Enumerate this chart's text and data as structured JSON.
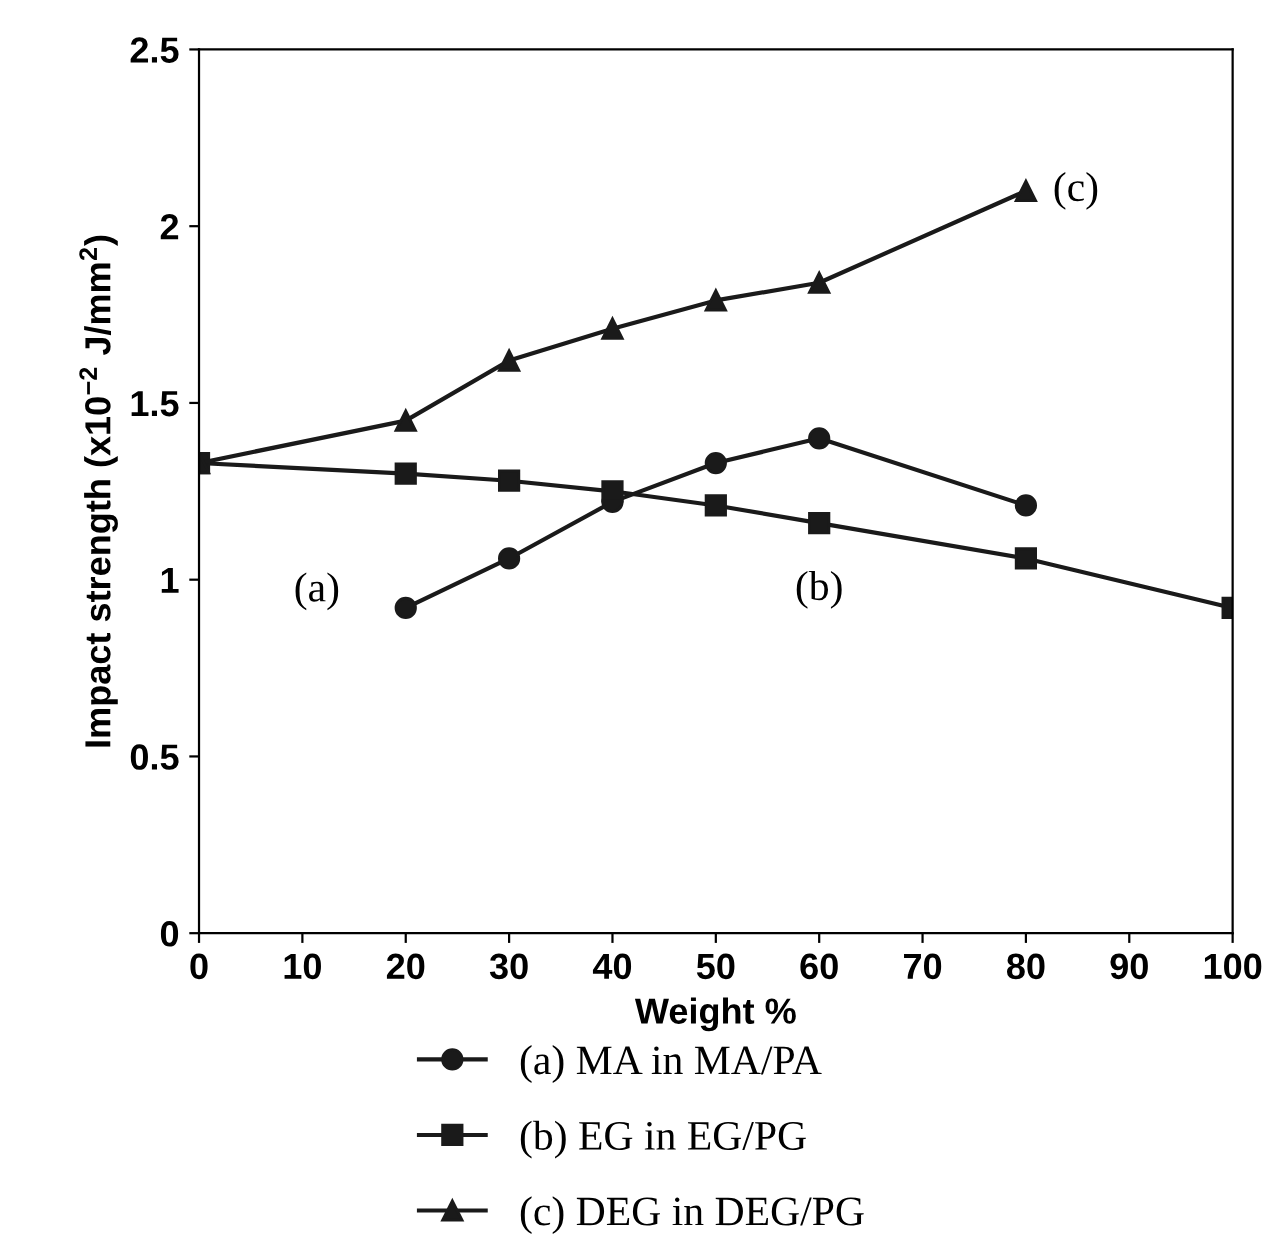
{
  "chart_data": {
    "type": "line",
    "xlabel": "Weight %",
    "ylabel": "Impact strength (x10$^{−2}$ J/mm$^{2}$)",
    "xlim": [
      0,
      100
    ],
    "xticks": [
      0,
      10,
      20,
      30,
      40,
      50,
      60,
      70,
      80,
      90,
      100
    ],
    "ylim": [
      0,
      2.5
    ],
    "yticks": [
      0,
      0.5,
      1,
      1.5,
      2,
      2.5
    ],
    "grid": false,
    "legend": "bottom",
    "series": [
      {
        "name": "(a) MA in MA/PA",
        "color": "#1a1a1a",
        "marker": "circle",
        "x": [
          20,
          30,
          40,
          50,
          60,
          80
        ],
        "values": [
          0.92,
          1.06,
          1.22,
          1.33,
          1.4,
          1.21
        ]
      },
      {
        "name": "(b) EG in EG/PG",
        "color": "#1a1a1a",
        "marker": "square",
        "x": [
          0,
          20,
          30,
          40,
          50,
          60,
          80,
          100
        ],
        "values": [
          1.33,
          1.3,
          1.28,
          1.25,
          1.21,
          1.16,
          1.06,
          0.92
        ]
      },
      {
        "name": "(c) DEG in DEG/PG",
        "color": "#1a1a1a",
        "marker": "triangle",
        "x": [
          0,
          20,
          30,
          40,
          50,
          60,
          80
        ],
        "values": [
          1.33,
          1.45,
          1.62,
          1.71,
          1.79,
          1.84,
          2.1
        ]
      }
    ],
    "annotations": [
      {
        "text": "(a)",
        "x": 20,
        "y": 0.92
      },
      {
        "text": "(b)",
        "x": 60,
        "y": 1.16
      },
      {
        "text": "(c)",
        "x": 80,
        "y": 2.1
      }
    ]
  }
}
